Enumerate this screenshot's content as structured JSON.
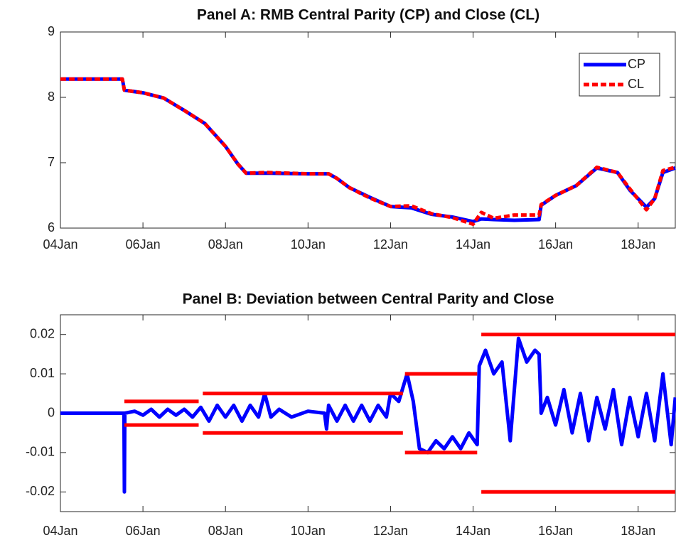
{
  "chart_data": [
    {
      "type": "line",
      "title": "Panel A: RMB Central Parity (CP) and Close (CL)",
      "x": [
        2004,
        2005.5,
        2005.55,
        2006,
        2006.5,
        2007,
        2007.5,
        2008,
        2008.3,
        2008.5,
        2009,
        2010,
        2010.5,
        2010.7,
        2011,
        2011.5,
        2012,
        2012.5,
        2013,
        2013.5,
        2014,
        2014.2,
        2014.5,
        2015,
        2015.6,
        2015.65,
        2016,
        2016.5,
        2017,
        2017.5,
        2017.8,
        2018.2,
        2018.4,
        2018.6,
        2018.9
      ],
      "series": [
        {
          "name": "CP",
          "color": "#0000ff",
          "linestyle": "solid",
          "values": [
            8.28,
            8.28,
            8.11,
            8.07,
            7.99,
            7.8,
            7.6,
            7.25,
            6.98,
            6.84,
            6.84,
            6.83,
            6.83,
            6.76,
            6.62,
            6.47,
            6.33,
            6.31,
            6.21,
            6.17,
            6.1,
            6.14,
            6.13,
            6.12,
            6.13,
            6.35,
            6.5,
            6.65,
            6.92,
            6.85,
            6.58,
            6.32,
            6.45,
            6.85,
            6.92
          ]
        },
        {
          "name": "CL",
          "color": "#ff0000",
          "linestyle": "dashed",
          "values": [
            8.28,
            8.28,
            8.11,
            8.07,
            7.99,
            7.8,
            7.6,
            7.25,
            6.98,
            6.84,
            6.85,
            6.83,
            6.83,
            6.76,
            6.62,
            6.46,
            6.33,
            6.34,
            6.22,
            6.16,
            6.06,
            6.24,
            6.15,
            6.2,
            6.2,
            6.36,
            6.5,
            6.65,
            6.93,
            6.85,
            6.6,
            6.28,
            6.45,
            6.88,
            6.93
          ]
        }
      ],
      "xlim": [
        2004,
        2018.9
      ],
      "xticks": [
        {
          "value": 2004,
          "label": "04Jan"
        },
        {
          "value": 2006,
          "label": "06Jan"
        },
        {
          "value": 2008,
          "label": "08Jan"
        },
        {
          "value": 2010,
          "label": "10Jan"
        },
        {
          "value": 2012,
          "label": "12Jan"
        },
        {
          "value": 2014,
          "label": "14Jan"
        },
        {
          "value": 2016,
          "label": "16Jan"
        },
        {
          "value": 2018,
          "label": "18Jan"
        }
      ],
      "ylim": [
        6,
        9
      ],
      "yticks": [
        6,
        7,
        8,
        9
      ],
      "legend": "northeast"
    },
    {
      "type": "line",
      "title": "Panel B: Deviation between Central Parity and Close",
      "series": [
        {
          "color": "#0000ff",
          "linestyle": "solid",
          "x": [
            2004,
            2005.54,
            2005.55,
            2005.56,
            2005.8,
            2006.0,
            2006.2,
            2006.4,
            2006.6,
            2006.8,
            2007.0,
            2007.2,
            2007.4,
            2007.6,
            2007.8,
            2008.0,
            2008.2,
            2008.4,
            2008.6,
            2008.8,
            2008.95,
            2009.1,
            2009.3,
            2009.6,
            2010.0,
            2010.4,
            2010.45,
            2010.5,
            2010.7,
            2010.9,
            2011.1,
            2011.3,
            2011.5,
            2011.7,
            2011.9,
            2012.0,
            2012.2,
            2012.4,
            2012.55,
            2012.7,
            2012.9,
            2013.1,
            2013.3,
            2013.5,
            2013.7,
            2013.9,
            2014.1,
            2014.15,
            2014.3,
            2014.5,
            2014.7,
            2014.9,
            2015.1,
            2015.3,
            2015.5,
            2015.6,
            2015.65,
            2015.8,
            2016.0,
            2016.2,
            2016.4,
            2016.6,
            2016.8,
            2017.0,
            2017.2,
            2017.4,
            2017.6,
            2017.8,
            2018.0,
            2018.2,
            2018.4,
            2018.6,
            2018.8,
            2018.9
          ],
          "values": [
            0,
            0,
            -0.02,
            0,
            0.0005,
            -0.0005,
            0.001,
            -0.001,
            0.001,
            -0.0005,
            0.001,
            -0.001,
            0.0015,
            -0.002,
            0.002,
            -0.001,
            0.002,
            -0.002,
            0.002,
            -0.001,
            0.005,
            -0.001,
            0.001,
            -0.001,
            0.0005,
            0,
            -0.004,
            0.002,
            -0.002,
            0.002,
            -0.002,
            0.002,
            -0.002,
            0.002,
            -0.001,
            0.005,
            0.003,
            0.01,
            0.003,
            -0.009,
            -0.01,
            -0.007,
            -0.009,
            -0.006,
            -0.009,
            -0.005,
            -0.008,
            0.012,
            0.016,
            0.01,
            0.013,
            -0.007,
            0.019,
            0.013,
            0.016,
            0.015,
            0,
            0.004,
            -0.003,
            0.006,
            -0.005,
            0.005,
            -0.007,
            0.004,
            -0.004,
            0.006,
            -0.008,
            0.004,
            -0.006,
            0.005,
            -0.007,
            0.01,
            -0.008,
            0.004
          ]
        },
        {
          "color": "#ff0000",
          "linestyle": "solid",
          "x": [
            2005.55,
            2007.35,
            2007.35,
            2007.45,
            2012.3,
            2012.3,
            2012.35,
            2014.1,
            2014.1,
            2014.2,
            2018.9
          ],
          "values": [
            0.003,
            0.003,
            null,
            0.005,
            0.005,
            null,
            0.01,
            0.01,
            null,
            0.02,
            0.02
          ]
        },
        {
          "color": "#ff0000",
          "linestyle": "solid",
          "x": [
            2005.55,
            2007.35,
            2007.35,
            2007.45,
            2012.3,
            2012.3,
            2012.35,
            2014.1,
            2014.1,
            2014.2,
            2018.9
          ],
          "values": [
            -0.003,
            -0.003,
            null,
            -0.005,
            -0.005,
            null,
            -0.01,
            -0.01,
            null,
            -0.02,
            -0.02
          ]
        }
      ],
      "xlim": [
        2004,
        2018.9
      ],
      "xticks": [
        {
          "value": 2004,
          "label": "04Jan"
        },
        {
          "value": 2006,
          "label": "06Jan"
        },
        {
          "value": 2008,
          "label": "08Jan"
        },
        {
          "value": 2010,
          "label": "10Jan"
        },
        {
          "value": 2012,
          "label": "12Jan"
        },
        {
          "value": 2014,
          "label": "14Jan"
        },
        {
          "value": 2016,
          "label": "16Jan"
        },
        {
          "value": 2018,
          "label": "18Jan"
        }
      ],
      "ylim": [
        -0.025,
        0.025
      ],
      "yticks": [
        -0.02,
        -0.01,
        0,
        0.01,
        0.02
      ]
    }
  ]
}
